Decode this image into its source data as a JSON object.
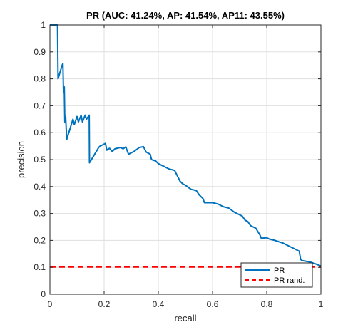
{
  "chart_data": {
    "type": "line",
    "title": "PR (AUC: 41.24%, AP: 41.54%, AP11: 43.55%)",
    "xlabel": "recall",
    "ylabel": "precision",
    "xlim": [
      0,
      1
    ],
    "ylim": [
      0,
      1
    ],
    "xticks": [
      0,
      0.2,
      0.4,
      0.6,
      0.8,
      1
    ],
    "xtick_labels": [
      "0",
      "0.2",
      "0.4",
      "0.6",
      "0.8",
      "1"
    ],
    "yticks": [
      0,
      0.1,
      0.2,
      0.3,
      0.4,
      0.5,
      0.6,
      0.7,
      0.8,
      0.9,
      1
    ],
    "ytick_labels": [
      "0",
      "0.1",
      "0.2",
      "0.3",
      "0.4",
      "0.5",
      "0.6",
      "0.7",
      "0.8",
      "0.9",
      "1"
    ],
    "grid": true,
    "legend_position": "bottom-right",
    "series": [
      {
        "name": "PR",
        "color": "#0072BD",
        "style": "solid",
        "points": [
          [
            0,
            1
          ],
          [
            0.028,
            1
          ],
          [
            0.03,
            0.8
          ],
          [
            0.045,
            0.85
          ],
          [
            0.048,
            0.857
          ],
          [
            0.05,
            0.75
          ],
          [
            0.053,
            0.77
          ],
          [
            0.055,
            0.64
          ],
          [
            0.058,
            0.66
          ],
          [
            0.062,
            0.575
          ],
          [
            0.085,
            0.65
          ],
          [
            0.09,
            0.63
          ],
          [
            0.1,
            0.66
          ],
          [
            0.105,
            0.64
          ],
          [
            0.115,
            0.665
          ],
          [
            0.12,
            0.64
          ],
          [
            0.13,
            0.665
          ],
          [
            0.135,
            0.65
          ],
          [
            0.145,
            0.665
          ],
          [
            0.146,
            0.488
          ],
          [
            0.18,
            0.545
          ],
          [
            0.185,
            0.55
          ],
          [
            0.195,
            0.555
          ],
          [
            0.205,
            0.56
          ],
          [
            0.21,
            0.535
          ],
          [
            0.22,
            0.542
          ],
          [
            0.23,
            0.53
          ],
          [
            0.24,
            0.54
          ],
          [
            0.26,
            0.545
          ],
          [
            0.27,
            0.54
          ],
          [
            0.28,
            0.547
          ],
          [
            0.29,
            0.52
          ],
          [
            0.31,
            0.53
          ],
          [
            0.33,
            0.545
          ],
          [
            0.345,
            0.548
          ],
          [
            0.355,
            0.528
          ],
          [
            0.37,
            0.52
          ],
          [
            0.375,
            0.5
          ],
          [
            0.39,
            0.495
          ],
          [
            0.4,
            0.485
          ],
          [
            0.42,
            0.475
          ],
          [
            0.43,
            0.47
          ],
          [
            0.44,
            0.465
          ],
          [
            0.46,
            0.46
          ],
          [
            0.47,
            0.44
          ],
          [
            0.48,
            0.42
          ],
          [
            0.49,
            0.41
          ],
          [
            0.5,
            0.405
          ],
          [
            0.52,
            0.39
          ],
          [
            0.54,
            0.385
          ],
          [
            0.55,
            0.37
          ],
          [
            0.565,
            0.355
          ],
          [
            0.57,
            0.34
          ],
          [
            0.6,
            0.34
          ],
          [
            0.62,
            0.335
          ],
          [
            0.64,
            0.325
          ],
          [
            0.66,
            0.32
          ],
          [
            0.68,
            0.305
          ],
          [
            0.7,
            0.295
          ],
          [
            0.71,
            0.29
          ],
          [
            0.72,
            0.275
          ],
          [
            0.73,
            0.27
          ],
          [
            0.74,
            0.255
          ],
          [
            0.75,
            0.25
          ],
          [
            0.76,
            0.245
          ],
          [
            0.775,
            0.22
          ],
          [
            0.78,
            0.208
          ],
          [
            0.8,
            0.21
          ],
          [
            0.81,
            0.205
          ],
          [
            0.83,
            0.2
          ],
          [
            0.845,
            0.195
          ],
          [
            0.86,
            0.19
          ],
          [
            0.87,
            0.185
          ],
          [
            0.88,
            0.18
          ],
          [
            0.9,
            0.17
          ],
          [
            0.91,
            0.165
          ],
          [
            0.92,
            0.16
          ],
          [
            0.925,
            0.13
          ],
          [
            0.93,
            0.125
          ],
          [
            0.96,
            0.12
          ],
          [
            0.98,
            0.113
          ],
          [
            1,
            0.105
          ]
        ]
      },
      {
        "name": "PR rand.",
        "color": "#FF0000",
        "style": "dashed",
        "points": [
          [
            0,
            0.102
          ],
          [
            1,
            0.102
          ]
        ]
      }
    ]
  }
}
